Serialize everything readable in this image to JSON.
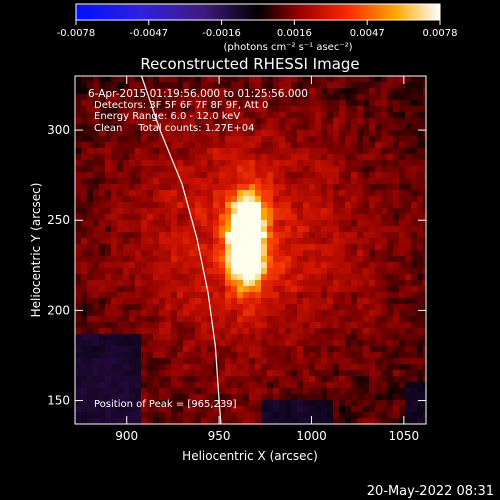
{
  "colorbar": {
    "tick_labels": [
      "-0.0078",
      "-0.0047",
      "-0.0016",
      "0.0016",
      "0.0047",
      "0.0078"
    ],
    "unit_label": "(photons cm⁻² s⁻¹ asec⁻²)",
    "range": [
      -0.0078,
      0.0078
    ]
  },
  "chart_data": {
    "type": "heatmap",
    "title": "Reconstructed RHESSI Image",
    "xlabel": "Heliocentric X (arcsec)",
    "ylabel": "Heliocentric Y (arcsec)",
    "xlim": [
      872,
      1062
    ],
    "ylim": [
      137,
      330
    ],
    "x_ticks": [
      900,
      950,
      1000,
      1050
    ],
    "y_ticks": [
      150,
      200,
      250,
      300
    ],
    "annotations": [
      "6-Apr-2015 01:19:56.000 to 01:25:56.000",
      "Detectors: 3F 5F 6F 7F 8F 9F, Att 0",
      "Energy Range: 6.0 - 12.0 keV",
      "Clean     Total counts: 1.27E+04"
    ],
    "peak_label": "Position of Peak = [965,239]",
    "peak": [
      965,
      239
    ],
    "limb_curve": [
      [
        908,
        330
      ],
      [
        918,
        300
      ],
      [
        930,
        270
      ],
      [
        938,
        240
      ],
      [
        944,
        210
      ],
      [
        948,
        180
      ],
      [
        950,
        150
      ],
      [
        951,
        137
      ]
    ],
    "grid": false,
    "colormap": "signed-hot"
  },
  "footer": {
    "timestamp": "20-May-2022 08:31"
  }
}
